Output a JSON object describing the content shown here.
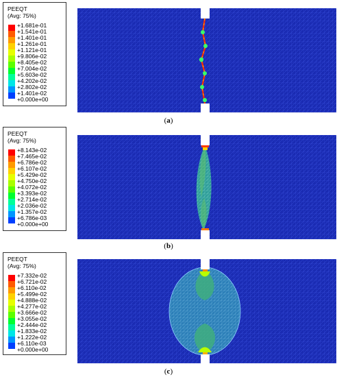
{
  "legend_colors": [
    "#ff0000",
    "#ff5a00",
    "#ff9a00",
    "#ffd100",
    "#e6ff00",
    "#a8ff00",
    "#5cff00",
    "#00ff30",
    "#00ff9a",
    "#00e6e6",
    "#0096ff",
    "#0040ff",
    "#0000ff"
  ],
  "mesh_color": "#1b2ab8",
  "panels": [
    {
      "id": "a",
      "legend_title": "PEEQT",
      "legend_subtitle": "(Avg: 75%)",
      "legend_values": [
        "+1.681e-01",
        "+1.541e-01",
        "+1.401e-01",
        "+1.261e-01",
        "+1.121e-01",
        "+9.806e-02",
        "+8.405e-02",
        "+7.004e-02",
        "+5.603e-02",
        "+4.202e-02",
        "+2.802e-02",
        "+1.401e-02",
        "+0.000e+00"
      ],
      "caption_open": "(",
      "caption_letter": "a",
      "caption_close": ")"
    },
    {
      "id": "b",
      "legend_title": "PEEQT",
      "legend_subtitle": "(Avg: 75%)",
      "legend_values": [
        "+8.143e-02",
        "+7.465e-02",
        "+6.786e-02",
        "+6.107e-02",
        "+5.429e-02",
        "+4.750e-02",
        "+4.072e-02",
        "+3.393e-02",
        "+2.714e-02",
        "+2.036e-02",
        "+1.357e-02",
        "+6.786e-03",
        "+0.000e+00"
      ],
      "caption_open": "(",
      "caption_letter": "b",
      "caption_close": ")"
    },
    {
      "id": "c",
      "legend_title": "PEEQT",
      "legend_subtitle": "(Avg: 75%)",
      "legend_values": [
        "+7.332e-02",
        "+6.721e-02",
        "+6.110e-02",
        "+5.499e-02",
        "+4.888e-02",
        "+4.277e-02",
        "+3.666e-02",
        "+3.055e-02",
        "+2.444e-02",
        "+1.833e-02",
        "+1.222e-02",
        "+6.110e-03",
        "+0.000e+00"
      ],
      "caption_open": "(",
      "caption_letter": "c",
      "caption_close": ")"
    }
  ]
}
